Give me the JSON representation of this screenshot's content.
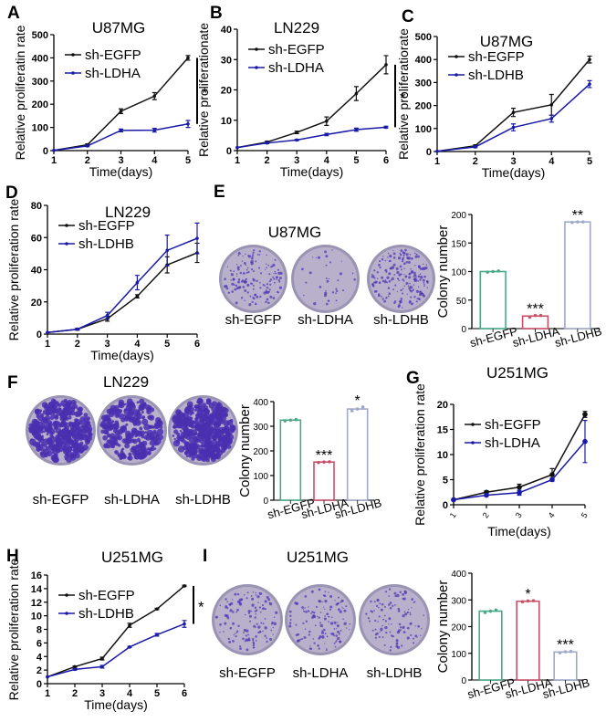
{
  "figure": {
    "colors": {
      "egfp_line": "#111111",
      "knockdown_line": "#1a1aa8",
      "bar_egfp": "#4aa88a",
      "bar_ldha": "#c8506a",
      "bar_ldhb": "#a0aac8",
      "plate_light": "#b9b0cc",
      "plate_dark": "#4a2fb0"
    }
  },
  "chart_data": [
    {
      "panel": "A",
      "type": "line",
      "title": "U87MG",
      "xlabel": "Time(days)",
      "ylabel": "Relative proliferatin rate",
      "x": [
        1,
        2,
        3,
        4,
        5
      ],
      "xticks": [
        "1",
        "2",
        "3",
        "4",
        "5"
      ],
      "ylim": [
        0,
        500
      ],
      "yticks": [
        0,
        100,
        200,
        300,
        400,
        500
      ],
      "series": [
        {
          "name": "sh-EGFP",
          "values": [
            1,
            25,
            170,
            235,
            400
          ],
          "errors": [
            0,
            4,
            10,
            15,
            10
          ]
        },
        {
          "name": "sh-LDHA",
          "values": [
            1,
            20,
            87,
            88,
            115
          ],
          "errors": [
            0,
            3,
            6,
            8,
            15
          ]
        }
      ],
      "annotation": "*",
      "legend": "top-left"
    },
    {
      "panel": "B",
      "type": "line",
      "title": "LN229",
      "xlabel": "Time(days)",
      "ylabel": "Relative proliferationate",
      "x": [
        1,
        2,
        3,
        4,
        5,
        6
      ],
      "xticks": [
        "1",
        "2",
        "3",
        "4",
        "5",
        "6"
      ],
      "ylim": [
        0,
        40
      ],
      "yticks": [
        0,
        10,
        20,
        30,
        40
      ],
      "series": [
        {
          "name": "sh-EGFP",
          "values": [
            1,
            2.8,
            6,
            9.7,
            18.8,
            28.3
          ],
          "errors": [
            0,
            0.3,
            0.4,
            1.4,
            2.3,
            3
          ]
        },
        {
          "name": "sh-LDHA",
          "values": [
            1,
            2.5,
            3.5,
            5.3,
            6.9,
            7.7
          ],
          "errors": [
            0,
            0.2,
            0.2,
            0.4,
            0.5,
            0.3
          ]
        }
      ],
      "annotation": "*",
      "legend": "top-left"
    },
    {
      "panel": "C",
      "type": "line",
      "title": "U87MG",
      "xlabel": "Time(days)",
      "ylabel": "Relative proliferatiorate",
      "x": [
        1,
        2,
        3,
        4,
        5
      ],
      "xticks": [
        "1",
        "2",
        "3",
        "4",
        "5"
      ],
      "ylim": [
        0,
        500
      ],
      "yticks": [
        0,
        100,
        200,
        300,
        400,
        500
      ],
      "series": [
        {
          "name": "sh-EGFP",
          "values": [
            1,
            25,
            170,
            203,
            400
          ],
          "errors": [
            0,
            4,
            18,
            45,
            15
          ]
        },
        {
          "name": "sh-LDHB",
          "values": [
            1,
            20,
            105,
            143,
            293
          ],
          "errors": [
            0,
            3,
            15,
            15,
            15
          ]
        }
      ],
      "annotation": "",
      "legend": "top-left"
    },
    {
      "panel": "D",
      "type": "line",
      "title": "LN229",
      "xlabel": "Time(days)",
      "ylabel": "Relative proliferation rate",
      "x": [
        1,
        2,
        3,
        4,
        5,
        6
      ],
      "xticks": [
        "1",
        "2",
        "3",
        "4",
        "5",
        "6"
      ],
      "ylim": [
        0,
        80
      ],
      "yticks": [
        0,
        20,
        40,
        60,
        80
      ],
      "series": [
        {
          "name": "sh-EGFP",
          "values": [
            1,
            3,
            9.5,
            23.5,
            43,
            50.5
          ],
          "errors": [
            0,
            0.5,
            1.5,
            1,
            5,
            6
          ]
        },
        {
          "name": "sh-LDHB",
          "values": [
            1,
            3,
            11.5,
            32,
            52,
            59.5
          ],
          "errors": [
            0,
            0.5,
            2,
            4.5,
            9.5,
            9.5
          ]
        }
      ],
      "annotation": "",
      "legend": "top-left"
    },
    {
      "panel": "E",
      "type": "bar",
      "title": "U87MG",
      "ylabel": "Colony number",
      "categories": [
        "sh-EGFP",
        "sh-LDHA",
        "sh-LDHB"
      ],
      "values": [
        100,
        22,
        187
      ],
      "points": [
        [
          99,
          100,
          101
        ],
        [
          20,
          23,
          23
        ],
        [
          186,
          187,
          187
        ]
      ],
      "ylim": [
        0,
        200
      ],
      "yticks": [
        0,
        50,
        100,
        150,
        200
      ],
      "significance": [
        "",
        "***",
        "**"
      ],
      "plate_labels": [
        "sh-EGFP",
        "sh-LDHA",
        "sh-LDHB"
      ],
      "plate_density": [
        0.35,
        0.08,
        0.45
      ]
    },
    {
      "panel": "F",
      "type": "bar",
      "title": "LN229",
      "ylabel": "Colony number",
      "categories": [
        "sh-EGFP",
        "sh-LDHA",
        "sh-LDHB"
      ],
      "values": [
        325,
        155,
        370
      ],
      "points": [
        [
          322,
          325,
          327
        ],
        [
          153,
          155,
          156
        ],
        [
          363,
          370,
          378
        ]
      ],
      "ylim": [
        0,
        400
      ],
      "yticks": [
        0,
        100,
        200,
        300,
        400
      ],
      "significance": [
        "",
        "***",
        "*"
      ],
      "plate_labels": [
        "sh-EGFP",
        "sh-LDHA",
        "sh-LDHB"
      ],
      "plate_density": [
        0.9,
        0.6,
        0.95
      ]
    },
    {
      "panel": "G",
      "type": "line",
      "title": "U251MG",
      "xlabel": "Time(days)",
      "ylabel": "Relative proliferation rate",
      "x": [
        1,
        2,
        3,
        4,
        5
      ],
      "xticks": [
        "1",
        "2",
        "3",
        "4",
        "5"
      ],
      "ylim": [
        0,
        20
      ],
      "yticks": [
        0,
        5,
        10,
        15,
        20
      ],
      "series": [
        {
          "name": "sh-EGFP",
          "values": [
            1,
            2.5,
            3.5,
            6,
            18
          ],
          "errors": [
            0,
            0.3,
            0.6,
            1.2,
            0.6
          ]
        },
        {
          "name": "sh-LDHA",
          "values": [
            1,
            1.9,
            2.4,
            5,
            12.6
          ],
          "errors": [
            0,
            0.2,
            0.5,
            0.3,
            4.2
          ]
        }
      ],
      "annotation": "",
      "legend": "top-left"
    },
    {
      "panel": "H",
      "type": "line",
      "title": "U251MG",
      "xlabel": "Time(days)",
      "ylabel": "Relative proliferation rate",
      "x": [
        1,
        2,
        3,
        4,
        5,
        6
      ],
      "xticks": [
        "1",
        "2",
        "3",
        "4",
        "5",
        "6"
      ],
      "ylim": [
        0,
        16
      ],
      "yticks": [
        0,
        2,
        4,
        6,
        8,
        10,
        12,
        14,
        16
      ],
      "series": [
        {
          "name": "sh-EGFP",
          "values": [
            1,
            2.5,
            3.7,
            8.6,
            11,
            14.4
          ],
          "errors": [
            0,
            0.1,
            0.2,
            0.3,
            0.1,
            0.1
          ]
        },
        {
          "name": "sh-LDHB",
          "values": [
            1,
            2.1,
            2.5,
            5.4,
            7.2,
            8.8
          ],
          "errors": [
            0,
            0.1,
            0.2,
            0.1,
            0.2,
            0.5
          ]
        }
      ],
      "annotation": "*",
      "legend": "top-left"
    },
    {
      "panel": "I",
      "type": "bar",
      "title": "U251MG",
      "ylabel": "Colony number",
      "categories": [
        "sh-EGFP",
        "sh-LDHA",
        "sh-LDHB"
      ],
      "values": [
        258,
        295,
        105
      ],
      "points": [
        [
          253,
          258,
          262
        ],
        [
          293,
          296,
          297
        ],
        [
          102,
          106,
          107
        ]
      ],
      "ylim": [
        0,
        400
      ],
      "yticks": [
        0,
        100,
        200,
        300,
        400
      ],
      "significance": [
        "",
        "*",
        "***"
      ],
      "plate_labels": [
        "sh-EGFP",
        "sh-LDHA",
        "sh-LDHB"
      ],
      "plate_density": [
        0.3,
        0.3,
        0.25
      ]
    }
  ]
}
